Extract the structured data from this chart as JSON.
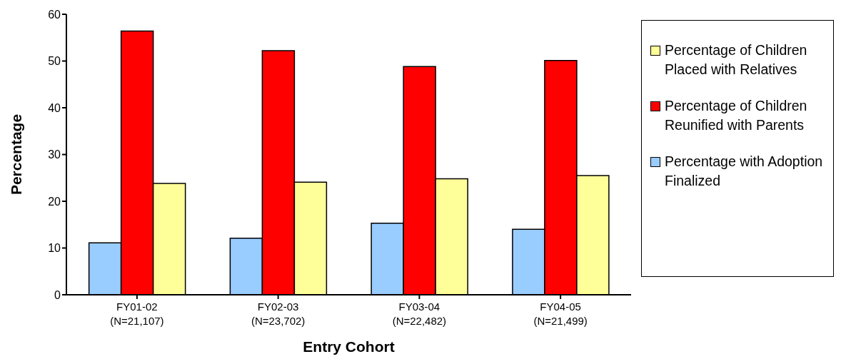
{
  "chart_data": {
    "type": "bar",
    "xlabel": "Entry Cohort",
    "ylabel": "Percentage",
    "categories": [
      "FY01-02\n(N=21,107)",
      "FY02-03\n(N=23,702)",
      "FY03-04\n(N=22,482)",
      "FY04-05\n(N=21,499)"
    ],
    "series": [
      {
        "name": "Percentage with Adoption Finalized",
        "color": "#99ccff",
        "values": [
          11.1,
          12.1,
          15.3,
          14.0
        ]
      },
      {
        "name": "Percentage of Children Reunified with Parents",
        "color": "#ff0000",
        "values": [
          56.4,
          52.2,
          48.8,
          50.1
        ]
      },
      {
        "name": "Percentage of Children Placed with Relatives",
        "color": "#ffff99",
        "values": [
          23.8,
          24.1,
          24.8,
          25.5
        ]
      }
    ],
    "ylim": [
      0,
      60
    ],
    "yticks": [
      0,
      10,
      20,
      30,
      40,
      50,
      60
    ],
    "grid": false,
    "legend": "right"
  }
}
